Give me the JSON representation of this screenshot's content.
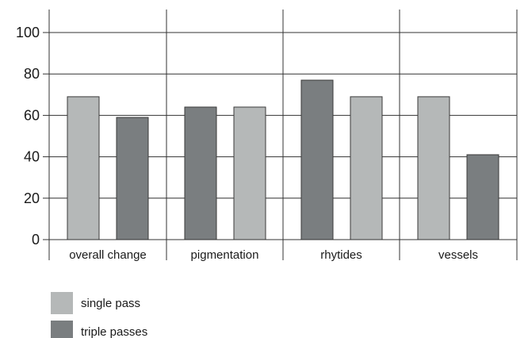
{
  "chart_data": {
    "type": "bar",
    "categories": [
      "overall change",
      "pigmentation",
      "rhytides",
      "vessels"
    ],
    "series": [
      {
        "name": "single pass",
        "values": [
          69,
          64,
          77,
          69
        ]
      },
      {
        "name": "triple passes",
        "values": [
          59,
          64,
          69,
          41
        ]
      }
    ],
    "bar_colors": [
      [
        "#b5b8b8",
        "#7a7e80"
      ],
      [
        "#7a7e80",
        "#b5b8b8"
      ],
      [
        "#7a7e80",
        "#b5b8b8"
      ],
      [
        "#b5b8b8",
        "#7a7e80"
      ]
    ],
    "legend_colors": [
      "#b5b8b8",
      "#7a7e80"
    ],
    "ylim": [
      0,
      110
    ],
    "yticks": [
      0,
      20,
      40,
      60,
      80,
      100
    ],
    "grid": true,
    "legend_position": "bottom-left",
    "title": "",
    "xlabel": "",
    "ylabel": ""
  }
}
